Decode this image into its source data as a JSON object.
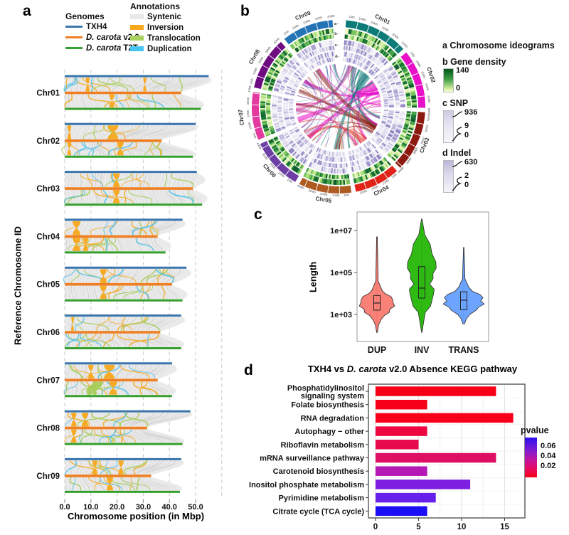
{
  "panel_letters": {
    "a": "a",
    "b": "b",
    "c": "c",
    "d": "d"
  },
  "panel_a": {
    "legend": {
      "genomes_title": "Genomes",
      "genomes": [
        {
          "italic": "",
          "rest": "TXH4",
          "color": "#3a76ad"
        },
        {
          "italic": "D. carota",
          "rest": " v2.0",
          "color": "#ef7f22"
        },
        {
          "italic": "D. carota",
          "rest": " T2T",
          "color": "#36a02e"
        }
      ],
      "annotations_title": "Annotations",
      "annotations": [
        {
          "label": "Syntenic",
          "color": "#e8e8e8"
        },
        {
          "label": "Inversion",
          "color": "#f7a81c"
        },
        {
          "label": "Translocation",
          "color": "#abd25e"
        },
        {
          "label": "Duplication",
          "color": "#45c5f2"
        }
      ]
    },
    "y_axis_label": "Reference Chromosome ID",
    "x_axis_label": "Chromosome position (in Mbp)",
    "x_ticks": [
      "0.0",
      "10.0",
      "20.0",
      "30.0",
      "40.0",
      "50.0"
    ],
    "colors": {
      "txh4": "#3a76ad",
      "v2": "#ef7f22",
      "t2t": "#36a02e",
      "syntenic": "#eaeaea",
      "inversion": "#f7a81c",
      "translocation": "#a6cc56",
      "duplication": "#55c2ea"
    },
    "chromosomes": [
      {
        "id": "Chr01",
        "txh4": 55,
        "v2": 44.5,
        "t2t": 52,
        "inversions": [
          {
            "p": 8,
            "w": 1.5,
            "band": "top"
          },
          {
            "p": 17,
            "w": 2,
            "band": "bot"
          },
          {
            "p": 30,
            "w": 1.2,
            "band": "top"
          }
        ],
        "translocations": []
      },
      {
        "id": "Chr02",
        "txh4": 50,
        "v2": 37,
        "t2t": 49,
        "inversions": [
          {
            "p": 1,
            "w": 1.5,
            "band": "both"
          },
          {
            "p": 16.5,
            "w": 4,
            "band": "top"
          },
          {
            "p": 20,
            "w": 2.5,
            "band": "bot"
          }
        ],
        "translocations": []
      },
      {
        "id": "Chr03",
        "txh4": 50.5,
        "v2": 49,
        "t2t": 52.5,
        "inversions": [
          {
            "p": 18.5,
            "w": 2.5,
            "band": "both"
          }
        ],
        "translocations": []
      },
      {
        "id": "Chr04",
        "txh4": 45,
        "v2": 35.5,
        "t2t": 38.5,
        "inversions": [
          {
            "p": 3,
            "w": 3,
            "band": "both"
          },
          {
            "p": 7,
            "w": 2,
            "band": "bot"
          }
        ],
        "translocations": []
      },
      {
        "id": "Chr05",
        "txh4": 46.5,
        "v2": 41,
        "t2t": 45,
        "inversions": [
          {
            "p": 13.5,
            "w": 2.5,
            "band": "both"
          }
        ],
        "translocations": []
      },
      {
        "id": "Chr06",
        "txh4": 44.5,
        "v2": 36.5,
        "t2t": 44.5,
        "inversions": [
          {
            "p": 2.5,
            "w": 1,
            "band": "top"
          }
        ],
        "translocations": []
      },
      {
        "id": "Chr07",
        "txh4": 41,
        "v2": 35.5,
        "t2t": 41,
        "inversions": [
          {
            "p": 15,
            "w": 4,
            "band": "top"
          },
          {
            "p": 17,
            "w": 3,
            "band": "bot"
          },
          {
            "p": 9,
            "w": 2,
            "band": "top"
          }
        ],
        "translocations": [
          {
            "p": 12,
            "w": 3
          },
          {
            "p": 14,
            "w": 2
          }
        ]
      },
      {
        "id": "Chr08",
        "txh4": 48,
        "v2": 31.5,
        "t2t": 45,
        "inversions": [
          {
            "p": 2.5,
            "w": 2,
            "band": "both"
          },
          {
            "p": 6.5,
            "w": 2.5,
            "band": "top"
          }
        ],
        "translocations": []
      },
      {
        "id": "Chr09",
        "txh4": 44.5,
        "v2": 33,
        "t2t": 44,
        "inversions": [
          {
            "p": 10.5,
            "w": 2,
            "band": "top"
          },
          {
            "p": 16,
            "w": 2.5,
            "band": "bot"
          },
          {
            "p": 20.5,
            "w": 2,
            "band": "top"
          }
        ],
        "translocations": []
      }
    ]
  },
  "panel_b": {
    "track_letters": [
      "a",
      "b",
      "c",
      "d"
    ],
    "chromosomes": [
      {
        "id": "Chr01",
        "color": "#0d7b77",
        "length": 55
      },
      {
        "id": "Chr02",
        "color": "#e811c8",
        "length": 50
      },
      {
        "id": "Chr03",
        "color": "#8c1a10",
        "length": 52
      },
      {
        "id": "Chr04",
        "color": "#e02418",
        "length": 39
      },
      {
        "id": "Chr05",
        "color": "#ad5b21",
        "length": 45
      },
      {
        "id": "Chr06",
        "color": "#6d3fa4",
        "length": 44
      },
      {
        "id": "Chr07",
        "color": "#e23a9e",
        "length": 41
      },
      {
        "id": "Chr08",
        "color": "#6e0b80",
        "length": 45
      },
      {
        "id": "Chr09",
        "color": "#2474b5",
        "length": 44
      }
    ],
    "legend": {
      "ideograms": "a Chromosome ideograms",
      "gene_density": "b Gene density",
      "gene_density_max": "140",
      "gene_density_min": "0",
      "snp": "c SNP",
      "snp_max": "936",
      "snp_mid": "9",
      "snp_min": "0",
      "indel": "d Indel",
      "indel_max": "630",
      "indel_mid": "2",
      "indel_min": "0"
    }
  },
  "chart_data": [
    {
      "id": "panel_c_violin",
      "type": "violin",
      "ylabel": "Length",
      "log_scale": true,
      "yticks": [
        "1e+03",
        "1e+05",
        "1e+07"
      ],
      "ytick_values": [
        1000,
        100000,
        10000000
      ],
      "categories": [
        "DUP",
        "INV",
        "TRANS"
      ],
      "series": [
        {
          "name": "DUP",
          "fill": "#F8766D",
          "stats": {
            "min": 130,
            "q1": 1600,
            "median": 3500,
            "q3": 8000,
            "max": 5000000
          },
          "profile": [
            [
              6.7,
              0.5
            ],
            [
              5.6,
              1
            ],
            [
              4.6,
              2
            ],
            [
              4.15,
              6
            ],
            [
              4.0,
              13
            ],
            [
              3.85,
              19
            ],
            [
              3.7,
              22
            ],
            [
              3.55,
              24
            ],
            [
              3.4,
              23
            ],
            [
              3.25,
              20
            ],
            [
              3.1,
              16
            ],
            [
              2.95,
              11
            ],
            [
              2.75,
              6
            ],
            [
              2.5,
              2
            ],
            [
              2.15,
              0.5
            ]
          ]
        },
        {
          "name": "INV",
          "fill": "#1db400",
          "stats": {
            "min": 130,
            "q1": 6000,
            "median": 18000,
            "q3": 190000,
            "max": 20000000
          },
          "profile": [
            [
              7.55,
              0.3
            ],
            [
              7.2,
              2
            ],
            [
              6.8,
              5
            ],
            [
              6.35,
              10
            ],
            [
              5.9,
              16
            ],
            [
              5.5,
              19
            ],
            [
              5.2,
              20
            ],
            [
              4.95,
              17
            ],
            [
              4.7,
              14
            ],
            [
              4.45,
              13
            ],
            [
              4.2,
              16
            ],
            [
              3.95,
              17
            ],
            [
              3.7,
              15
            ],
            [
              3.4,
              11
            ],
            [
              3.1,
              6
            ],
            [
              2.7,
              2.5
            ],
            [
              2.15,
              0.3
            ]
          ]
        },
        {
          "name": "TRANS",
          "fill": "#619CFF",
          "stats": {
            "min": 400,
            "q1": 1700,
            "median": 4800,
            "q3": 12000,
            "max": 1600000
          },
          "profile": [
            [
              6.2,
              0.3
            ],
            [
              5.4,
              1
            ],
            [
              4.7,
              2
            ],
            [
              4.3,
              6
            ],
            [
              4.1,
              14
            ],
            [
              3.95,
              22
            ],
            [
              3.8,
              27
            ],
            [
              3.65,
              25
            ],
            [
              3.5,
              27
            ],
            [
              3.35,
              23
            ],
            [
              3.2,
              16
            ],
            [
              3.0,
              9
            ],
            [
              2.8,
              4
            ],
            [
              2.55,
              1
            ]
          ]
        }
      ]
    },
    {
      "id": "panel_d_kegg",
      "type": "bar",
      "orientation": "horizontal",
      "title_pre": "TXH4 vs ",
      "title_italic": "D. carota",
      "title_post": " v2.0 Absence KEGG pathway",
      "categories": [
        "Phosphatidylinositol\nsignaling system",
        "Folate biosynthesis",
        "RNA degradation",
        "Autophagy − other",
        "Riboflavin metabolism",
        "mRNA surveillance pathway",
        "Carotenoid biosynthesis",
        "Inositol phosphate metabolism",
        "Pyrimidine metabolism",
        "Citrate cycle (TCA cycle)"
      ],
      "values": [
        14,
        6,
        16,
        6,
        5,
        14,
        6,
        11,
        7,
        6
      ],
      "bar_colors": [
        "#f50015",
        "#f50018",
        "#f8001a",
        "#ed0940",
        "#e70b4d",
        "#dd0e63",
        "#b518b5",
        "#7d1fe0",
        "#6520ea",
        "#1b0df5"
      ],
      "xticks": [
        "0",
        "5",
        "10",
        "15"
      ],
      "xtick_values": [
        0,
        5,
        10,
        15
      ],
      "xlim": [
        0,
        17
      ],
      "legend": {
        "title": "pvalue",
        "labels": [
          "0.06",
          "0.04",
          "0.02"
        ],
        "gradient": [
          "#2b0ff0",
          "#5a18e0",
          "#8d1bc8",
          "#c013a0",
          "#e60b62",
          "#f50215"
        ]
      }
    }
  ]
}
